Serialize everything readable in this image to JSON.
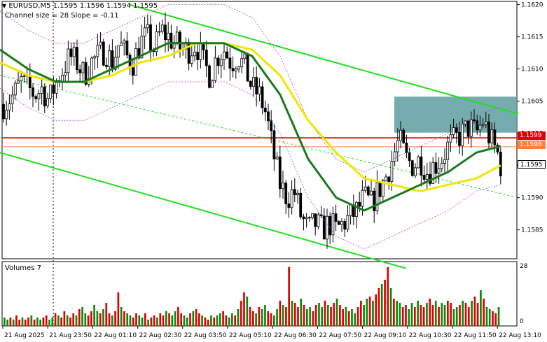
{
  "header": {
    "symbol_line": "EURUSD,M5  1.1595 1.1596 1.1594 1.1595",
    "indicator_line": "Channel size = 28 Slope = -0.11"
  },
  "volumes_panel": {
    "label": "Volumes 7",
    "scale_top": "28",
    "scale_bottom": "0"
  },
  "price_badges": {
    "red_level": "1.1599",
    "orange_level": "1.1598",
    "last_price": "1.1595"
  },
  "colors": {
    "bull": "#0a8a0a",
    "bear": "#e00000",
    "fast_ma": "#1a7a1a",
    "slow_ma": "#f2e600",
    "channel": "#22dd22",
    "resistance_box": "#5f9ea0",
    "red_line": "#e00000",
    "orange_line": "#ff8040"
  },
  "chart_data": {
    "type": "candlestick",
    "y_axis_ticks": [
      "1.1620",
      "1.1615",
      "1.1610",
      "1.1605",
      "1.1600",
      "1.1595",
      "1.1590",
      "1.1585"
    ],
    "ylim": [
      1.15805,
      1.16205
    ],
    "x_axis_ticks": [
      "21 Aug 2025",
      "21 Aug 23:50",
      "22 Aug 01:10",
      "22 Aug 02:30",
      "22 Aug 03:50",
      "22 Aug 05:10",
      "22 Aug 06:30",
      "22 Aug 07:50",
      "22 Aug 09:10",
      "22 Aug 10:30",
      "22 Aug 11:50",
      "22 Aug 13:10"
    ],
    "horizontal_levels": [
      1.15993,
      1.15979
    ],
    "resistance_zone": [
      1.16001,
      1.16057
    ],
    "close_path": [
      [
        0,
        1.1604
      ],
      [
        10,
        1.1605
      ],
      [
        20,
        1.1606
      ],
      [
        30,
        1.1608
      ],
      [
        40,
        1.1607
      ],
      [
        50,
        1.1606
      ],
      [
        60,
        1.1607
      ],
      [
        70,
        1.1605
      ],
      [
        80,
        1.1608
      ],
      [
        90,
        1.161
      ],
      [
        100,
        1.1612
      ],
      [
        110,
        1.1611
      ],
      [
        120,
        1.1609
      ],
      [
        130,
        1.1611
      ],
      [
        140,
        1.1612
      ],
      [
        150,
        1.1613
      ],
      [
        160,
        1.1611
      ],
      [
        170,
        1.1614
      ],
      [
        180,
        1.1612
      ],
      [
        190,
        1.1611
      ],
      [
        200,
        1.1614
      ],
      [
        210,
        1.1615
      ],
      [
        220,
        1.1613
      ],
      [
        230,
        1.1616
      ],
      [
        240,
        1.1615
      ],
      [
        250,
        1.1614
      ],
      [
        260,
        1.1613
      ],
      [
        270,
        1.1613
      ],
      [
        280,
        1.1614
      ],
      [
        290,
        1.1611
      ],
      [
        300,
        1.1609
      ],
      [
        310,
        1.1612
      ],
      [
        320,
        1.1613
      ],
      [
        330,
        1.1611
      ],
      [
        340,
        1.1612
      ],
      [
        350,
        1.161
      ],
      [
        360,
        1.1607
      ],
      [
        370,
        1.1606
      ],
      [
        380,
        1.1603
      ],
      [
        390,
        1.1597
      ],
      [
        400,
        1.1592
      ],
      [
        410,
        1.159
      ],
      [
        420,
        1.1591
      ],
      [
        430,
        1.1587
      ],
      [
        440,
        1.1585
      ],
      [
        450,
        1.1586
      ],
      [
        460,
        1.1585
      ],
      [
        470,
        1.1586
      ],
      [
        480,
        1.1585
      ],
      [
        490,
        1.1586
      ],
      [
        500,
        1.1587
      ],
      [
        510,
        1.1588
      ],
      [
        520,
        1.159
      ],
      [
        530,
        1.1589
      ],
      [
        540,
        1.1591
      ],
      [
        550,
        1.1593
      ],
      [
        560,
        1.1596
      ],
      [
        570,
        1.1599
      ],
      [
        580,
        1.1596
      ],
      [
        590,
        1.1595
      ],
      [
        600,
        1.1596
      ],
      [
        610,
        1.1594
      ],
      [
        620,
        1.1595
      ],
      [
        630,
        1.1596
      ],
      [
        640,
        1.1598
      ],
      [
        650,
        1.1599
      ],
      [
        660,
        1.16
      ],
      [
        670,
        1.1601
      ],
      [
        680,
        1.16
      ],
      [
        690,
        1.1602
      ],
      [
        700,
        1.1599
      ],
      [
        710,
        1.1597
      ],
      [
        715,
        1.1595
      ]
    ],
    "fast_ma": [
      [
        0,
        1.1613
      ],
      [
        40,
        1.161
      ],
      [
        80,
        1.1608
      ],
      [
        120,
        1.1608
      ],
      [
        160,
        1.161
      ],
      [
        200,
        1.1612
      ],
      [
        240,
        1.1614
      ],
      [
        280,
        1.1614
      ],
      [
        320,
        1.1614
      ],
      [
        360,
        1.1612
      ],
      [
        400,
        1.1606
      ],
      [
        440,
        1.1596
      ],
      [
        480,
        1.159
      ],
      [
        520,
        1.1588
      ],
      [
        560,
        1.159
      ],
      [
        600,
        1.1592
      ],
      [
        640,
        1.1594
      ],
      [
        680,
        1.1597
      ],
      [
        715,
        1.1598
      ]
    ],
    "slow_ma": [
      [
        0,
        1.1611
      ],
      [
        40,
        1.1609
      ],
      [
        80,
        1.1608
      ],
      [
        120,
        1.1608
      ],
      [
        160,
        1.1609
      ],
      [
        200,
        1.1611
      ],
      [
        240,
        1.1612
      ],
      [
        280,
        1.1614
      ],
      [
        320,
        1.1614
      ],
      [
        360,
        1.1613
      ],
      [
        400,
        1.1609
      ],
      [
        440,
        1.1602
      ],
      [
        480,
        1.1597
      ],
      [
        520,
        1.1593
      ],
      [
        560,
        1.1592
      ],
      [
        600,
        1.1591
      ],
      [
        640,
        1.1592
      ],
      [
        680,
        1.1593
      ],
      [
        715,
        1.1595
      ]
    ],
    "channel_upper": [
      [
        185,
        1.162
      ],
      [
        740,
        1.1603
      ]
    ],
    "channel_lower": [
      [
        0,
        1.1597
      ],
      [
        580,
        1.1579
      ]
    ],
    "channel_mid": [
      [
        0,
        1.1609
      ],
      [
        740,
        1.159
      ]
    ],
    "volumes": [
      4,
      3,
      4,
      3,
      5,
      3,
      4,
      3,
      4,
      5,
      3,
      4,
      3,
      4,
      5,
      3,
      4,
      6,
      5,
      4,
      7,
      5,
      4,
      6,
      5,
      8,
      9,
      6,
      5,
      7,
      10,
      7,
      6,
      8,
      11,
      6,
      5,
      7,
      16,
      9,
      7,
      6,
      5,
      4,
      6,
      5,
      4,
      6,
      3,
      4,
      5,
      4,
      6,
      5,
      7,
      6,
      5,
      7,
      9,
      6,
      5,
      4,
      6,
      7,
      8,
      6,
      5,
      4,
      3,
      5,
      4,
      5,
      6,
      7,
      5,
      4,
      6,
      5,
      8,
      12,
      16,
      14,
      9,
      7,
      6,
      9,
      8,
      10,
      7,
      6,
      5,
      8,
      12,
      10,
      9,
      28,
      12,
      11,
      9,
      13,
      10,
      8,
      9,
      7,
      10,
      11,
      9,
      12,
      10,
      9,
      11,
      13,
      10,
      8,
      9,
      7,
      8,
      6,
      9,
      12,
      10,
      13,
      14,
      12,
      15,
      18,
      20,
      22,
      28,
      18,
      13,
      12,
      11,
      9,
      10,
      8,
      11,
      9,
      12,
      10,
      9,
      11,
      13,
      10,
      12,
      9,
      11,
      10,
      12,
      11,
      8,
      9,
      10,
      12,
      11,
      9,
      12,
      14,
      11,
      17,
      13,
      9,
      8,
      7,
      6,
      9
    ],
    "volumes_ylim": [
      0,
      28
    ]
  }
}
